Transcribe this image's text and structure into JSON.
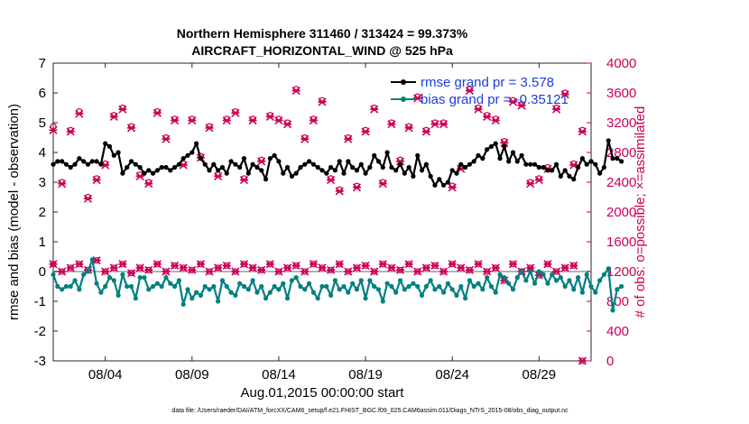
{
  "chart_data": {
    "type": "line",
    "title": "Northern Hemisphere 311460 / 313424 = 99.373%",
    "subtitle": "AIRCRAFT_HORIZONTAL_WIND @ 525 hPa",
    "xlabel": "Aug.01,2015 00:00:00 start",
    "ylabel": "rmse and bias (model - observation)",
    "ylabel_right": "# of obs: o=possible; ×=assimilated",
    "footer": "data file: /Users/raeder/DAI/ATM_forcXX/CAM6_setup/f.e21.FHIST_BGC.f09_025.CAM6assim.011/Diags_NTrS_2015-08/obs_diag_output.nc",
    "xlim": [
      1,
      32
    ],
    "ylim": [
      -3,
      7
    ],
    "ylim_right": [
      0,
      4000
    ],
    "x_ticks": [
      {
        "x": 4,
        "label": "08/04"
      },
      {
        "x": 9,
        "label": "08/09"
      },
      {
        "x": 14,
        "label": "08/14"
      },
      {
        "x": 19,
        "label": "08/19"
      },
      {
        "x": 24,
        "label": "08/24"
      },
      {
        "x": 29,
        "label": "08/29"
      }
    ],
    "y_ticks": [
      "-3",
      "-2",
      "-1",
      "0",
      "1",
      "2",
      "3",
      "4",
      "5",
      "6",
      "7"
    ],
    "y_ticks_right": [
      "0",
      "400",
      "800",
      "1200",
      "1600",
      "2000",
      "2400",
      "2800",
      "3200",
      "3600",
      "4000"
    ],
    "legend": {
      "position": "top-right",
      "entries": [
        "rmse grand pr = 3.578",
        "bias grand pr = -0.35121"
      ]
    },
    "colors": {
      "rmse": "#000000",
      "bias": "#008080",
      "obs": "#cc0055",
      "zero_line": "#b3b3b3"
    },
    "series": [
      {
        "name": "rmse",
        "x_start": 1.0,
        "x_step": 0.25,
        "values": [
          3.6,
          3.7,
          3.7,
          3.6,
          3.5,
          3.6,
          3.8,
          3.7,
          3.6,
          3.7,
          3.7,
          3.6,
          4.3,
          4.2,
          3.9,
          4.0,
          3.3,
          3.5,
          3.7,
          3.6,
          3.5,
          3.3,
          3.4,
          3.3,
          3.4,
          3.5,
          3.5,
          3.4,
          3.5,
          3.6,
          3.8,
          3.9,
          4.0,
          4.3,
          3.8,
          3.6,
          3.4,
          3.6,
          3.4,
          3.5,
          3.3,
          3.7,
          3.6,
          3.5,
          3.8,
          3.3,
          3.6,
          3.5,
          3.4,
          3.1,
          3.8,
          3.9,
          3.7,
          3.3,
          3.5,
          3.2,
          3.3,
          3.5,
          3.6,
          3.7,
          3.6,
          3.5,
          3.4,
          3.3,
          3.5,
          3.4,
          3.7,
          3.3,
          3.7,
          3.5,
          3.4,
          3.6,
          3.3,
          3.5,
          3.9,
          3.7,
          3.5,
          4.0,
          3.5,
          3.4,
          3.6,
          3.3,
          3.5,
          3.2,
          3.9,
          3.4,
          3.6,
          3.2,
          2.9,
          3.1,
          2.9,
          3.0,
          3.4,
          3.3,
          3.6,
          3.5,
          3.6,
          3.7,
          3.9,
          3.8,
          4.1,
          4.2,
          4.3,
          3.8,
          4.2,
          3.7,
          4.0,
          3.7,
          3.9,
          3.6,
          3.6,
          3.6,
          3.5,
          3.5,
          3.4,
          3.4,
          3.6,
          3.2,
          3.4,
          3.2,
          3.1,
          3.5,
          3.8,
          3.6,
          3.7,
          3.6,
          3.3,
          3.5,
          4.4,
          3.8,
          3.8,
          3.7
        ]
      },
      {
        "name": "bias",
        "x_start": 1.0,
        "x_step": 0.25,
        "values": [
          -0.1,
          -0.5,
          -0.6,
          -0.5,
          -0.5,
          -0.3,
          -0.6,
          -0.1,
          0.0,
          0.4,
          -0.4,
          -0.7,
          -0.5,
          -0.2,
          -0.3,
          -0.8,
          -0.1,
          -0.5,
          -0.5,
          -0.9,
          -0.2,
          -0.2,
          -0.6,
          -0.5,
          -0.4,
          -0.5,
          -0.2,
          -0.4,
          -0.5,
          -0.3,
          -1.1,
          -0.6,
          -0.9,
          -0.7,
          -0.8,
          -0.5,
          -0.6,
          -0.5,
          -1.0,
          -0.3,
          -0.5,
          -0.7,
          -0.8,
          -0.4,
          -0.5,
          -0.6,
          -0.3,
          -0.7,
          -0.5,
          -0.9,
          -0.7,
          -0.5,
          -0.6,
          -0.4,
          -0.9,
          -0.3,
          -0.2,
          -0.5,
          -0.6,
          -0.4,
          -0.7,
          -0.9,
          -0.5,
          -0.5,
          -0.8,
          -0.3,
          -0.6,
          -0.5,
          -0.7,
          -0.4,
          -0.6,
          -0.3,
          -0.9,
          -0.3,
          -0.5,
          -0.6,
          -1.0,
          -0.4,
          -0.5,
          -0.7,
          -0.3,
          -0.6,
          -0.5,
          -0.4,
          -0.5,
          -0.8,
          -0.5,
          -0.3,
          -0.6,
          -0.5,
          -0.7,
          -0.4,
          -0.6,
          -0.8,
          -0.5,
          -0.9,
          -0.3,
          -0.5,
          -0.4,
          -0.6,
          -0.2,
          -0.5,
          -0.7,
          -0.1,
          -0.2,
          -0.4,
          -0.6,
          -0.2,
          0.0,
          -0.3,
          0.0,
          -0.4,
          0.0,
          -0.1,
          -0.4,
          -0.1,
          -0.3,
          -0.2,
          -0.5,
          -0.3,
          -0.6,
          -0.2,
          -0.7,
          -0.1,
          -0.5,
          -0.7,
          -0.3,
          -0.1,
          0.1,
          -1.3,
          -0.6,
          -0.5
        ]
      },
      {
        "name": "obs_possible",
        "x_start": 1.0,
        "x_step": 0.5,
        "values": [
          3150,
          2400,
          3100,
          3350,
          2200,
          2450,
          2650,
          3300,
          3400,
          3150,
          2500,
          2400,
          3350,
          3000,
          3250,
          2650,
          3250,
          2750,
          3150,
          2500,
          3250,
          3350,
          2450,
          3250,
          2700,
          3300,
          3250,
          3200,
          3650,
          3000,
          3250,
          3500,
          2450,
          2300,
          3000,
          2350,
          3100,
          3400,
          2400,
          3200,
          2700,
          3150,
          3550,
          3100,
          3200,
          3200,
          2350,
          2600,
          3650,
          3400,
          3300,
          3250,
          2950,
          3500,
          3450,
          2400,
          2450,
          2600,
          3400,
          3600,
          2650,
          3100
        ]
      },
      {
        "name": "obs_assimilated",
        "x_start": 1.0,
        "x_step": 0.5,
        "values": [
          3100,
          2380,
          3080,
          3320,
          2180,
          2430,
          2630,
          3280,
          3380,
          3130,
          2480,
          2380,
          3330,
          2980,
          3230,
          2630,
          3230,
          2730,
          3130,
          2480,
          3230,
          3330,
          2430,
          3230,
          2680,
          3280,
          3230,
          3180,
          3630,
          2980,
          3230,
          3480,
          2430,
          2280,
          2980,
          2330,
          3080,
          3380,
          2380,
          3180,
          2680,
          3130,
          3530,
          3080,
          3180,
          3180,
          2330,
          2580,
          3630,
          3380,
          3280,
          3230,
          2930,
          3480,
          3430,
          2380,
          2430,
          2580,
          3380,
          3580,
          2630,
          3080
        ]
      },
      {
        "name": "obs_possible_low",
        "x_start": 1.0,
        "x_step": 0.5,
        "values": [
          1300,
          1200,
          1250,
          1300,
          1220,
          1350,
          1200,
          1250,
          1300,
          1180,
          1250,
          1220,
          1300,
          1200,
          1280,
          1250,
          1220,
          1300,
          1200,
          1250,
          1280,
          1200,
          1300,
          1250,
          1220,
          1300,
          1200,
          1250,
          1280,
          1200,
          1300,
          1250,
          1220,
          1300,
          1200,
          1250,
          1280,
          1200,
          1300,
          1250,
          1220,
          1300,
          1200,
          1250,
          1280,
          1200,
          1300,
          1250,
          1220,
          1300,
          1200,
          1250,
          1080,
          1300,
          1200,
          1250,
          1150,
          1300,
          1200,
          1250,
          1280,
          0
        ]
      }
    ]
  }
}
